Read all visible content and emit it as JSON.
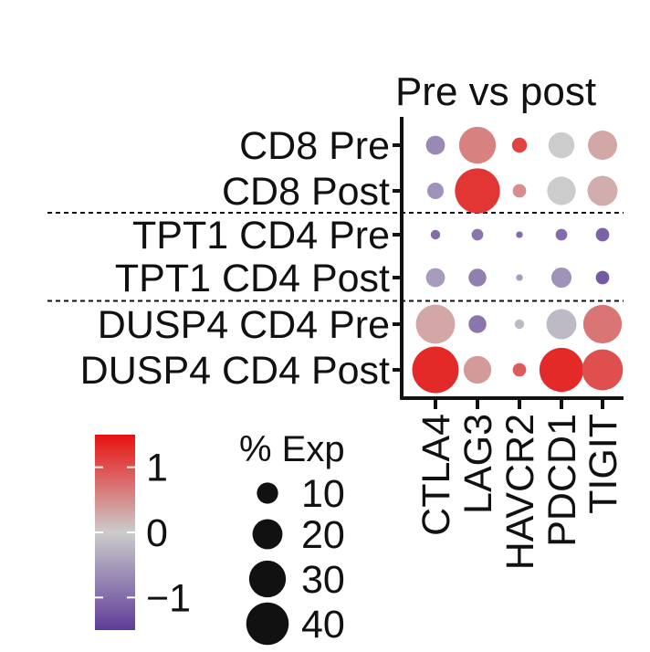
{
  "chart_data": {
    "type": "dotplot",
    "title": "Pre vs post",
    "genes": [
      "CTLA4",
      "LAG3",
      "HAVCR2",
      "PDCD1",
      "TIGIT"
    ],
    "groups": [
      "CD8 Pre",
      "CD8 Post",
      "TPT1 CD4 Pre",
      "TPT1 CD4 Post",
      "DUSP4 CD4 Pre",
      "DUSP4 CD4 Post"
    ],
    "group_separators_after": [
      1,
      3
    ],
    "pct_exp": [
      [
        8,
        30,
        5,
        15,
        19
      ],
      [
        6,
        45,
        4,
        18,
        20
      ],
      [
        2,
        3,
        1,
        3,
        4
      ],
      [
        8,
        7,
        1,
        9,
        4
      ],
      [
        34,
        7,
        2,
        20,
        33
      ],
      [
        48,
        17,
        4,
        43,
        37
      ]
    ],
    "avg_exp": [
      [
        -0.7,
        0.6,
        1.1,
        0.0,
        0.3
      ],
      [
        -0.6,
        1.2,
        0.5,
        0.0,
        0.25
      ],
      [
        -1.0,
        -0.9,
        -1.0,
        -1.0,
        -1.1
      ],
      [
        -0.5,
        -0.8,
        -0.5,
        -0.6,
        -1.2
      ],
      [
        0.3,
        -0.9,
        -0.2,
        -0.2,
        0.7
      ],
      [
        1.3,
        0.4,
        0.9,
        1.3,
        1.0
      ]
    ],
    "color_legend": {
      "ticks": [
        1,
        0,
        -1
      ],
      "tick_labels": [
        "1",
        "0",
        "−1"
      ],
      "range": [
        -1.5,
        1.5
      ]
    },
    "size_legend": {
      "title": "% Exp",
      "values": [
        10,
        20,
        30,
        40
      ],
      "labels": [
        "10",
        "20",
        "30",
        "40"
      ]
    },
    "colors": {
      "low": "#5e3c99",
      "mid": "#cccccc",
      "high": "#e8110f"
    }
  }
}
